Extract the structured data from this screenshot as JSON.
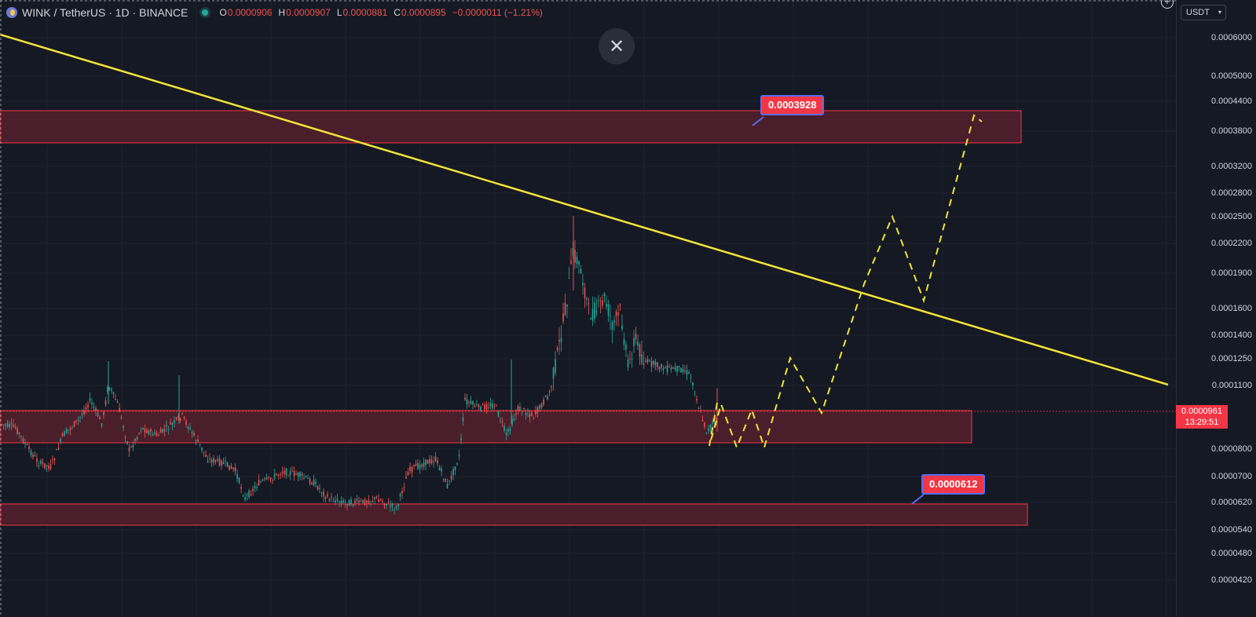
{
  "header": {
    "symbol_title": "WINK / TetherUS · 1D · BINANCE",
    "ohlc": [
      {
        "key": "O",
        "value": "0.0000906"
      },
      {
        "key": "H",
        "value": "0.0000907"
      },
      {
        "key": "L",
        "value": "0.0000881"
      },
      {
        "key": "C",
        "value": "0.0000895"
      }
    ],
    "change": "−0.0000011 (−1.21%)"
  },
  "close_button": {
    "icon": "close-icon",
    "glyph": "✕"
  },
  "plus_button": {
    "glyph": "+"
  },
  "currency_select": {
    "value": "USDT"
  },
  "price_axis": {
    "ticks": [
      "0.0006000",
      "0.0005000",
      "0.0004400",
      "0.0003800",
      "0.0003200",
      "0.0002800",
      "0.0002500",
      "0.0002200",
      "0.0001900",
      "0.0001600",
      "0.0001400",
      "0.0001250",
      "0.0001100",
      "0.0000800",
      "0.0000700",
      "0.0000620",
      "0.0000540",
      "0.0000480",
      "0.0000420"
    ]
  },
  "current_price": {
    "price": "0.0000961",
    "countdown": "13:29:51"
  },
  "callouts": {
    "upper": "0.0003928",
    "lower": "0.0000612"
  },
  "colors": {
    "background": "#151924",
    "zone_fill": "#4a1e2a",
    "zone_border": "#f23645",
    "trendline": "#f5e336",
    "candle_up": "#26a69a",
    "candle_down": "#ef5350",
    "callout_bg": "#f23645",
    "callout_border": "#5b6bf0"
  }
}
